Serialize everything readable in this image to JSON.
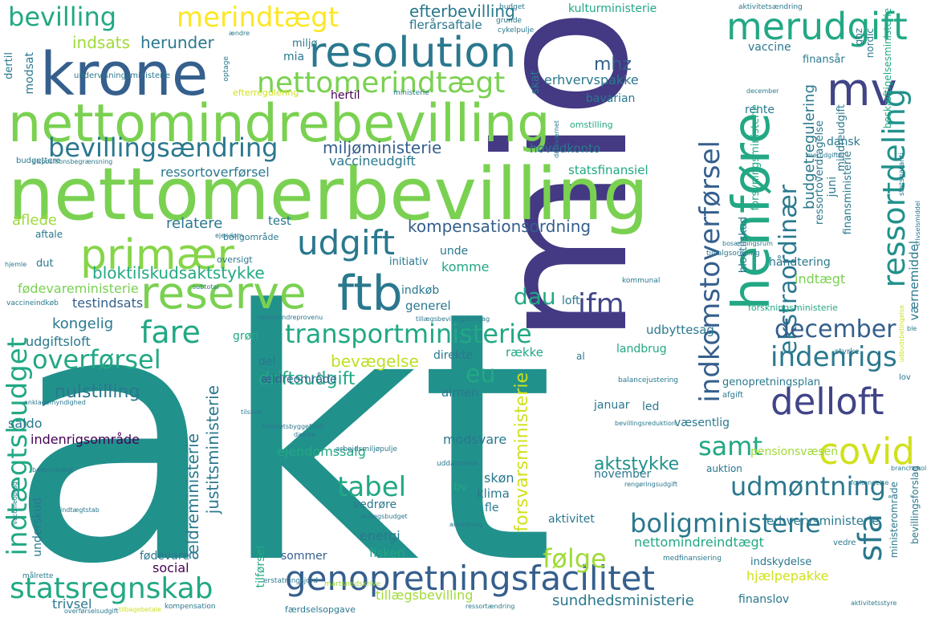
{
  "words": [
    {
      "text": "akt",
      "color": "#21918c"
    },
    {
      "text": "mio",
      "color": "#443983"
    },
    {
      "text": "nettomerbevilling",
      "color": "#7ad151"
    },
    {
      "text": "nettomindrebevilling",
      "color": "#7ad151"
    },
    {
      "text": "krone",
      "color": "#355f8d"
    },
    {
      "text": "resolution",
      "color": "#2a788e"
    },
    {
      "text": "henføre",
      "color": "#22a884"
    },
    {
      "text": "reserve",
      "color": "#7ad151"
    },
    {
      "text": "ftb",
      "color": "#2a788e"
    },
    {
      "text": "primær",
      "color": "#86d549"
    },
    {
      "text": "genopretningsfacilitet",
      "color": "#355f8d"
    },
    {
      "text": "merudgift",
      "color": "#22a884"
    },
    {
      "text": "nettomerindtægt",
      "color": "#7ad151"
    },
    {
      "text": "udgift",
      "color": "#2a788e"
    },
    {
      "text": "mv",
      "color": "#414487"
    },
    {
      "text": "bevillingsændring",
      "color": "#2a788e"
    },
    {
      "text": "delloft",
      "color": "#414487"
    },
    {
      "text": "covid",
      "color": "#d0e11c"
    },
    {
      "text": "ressortdeling",
      "color": "#21918c"
    },
    {
      "text": "transportministerie",
      "color": "#22a884"
    },
    {
      "text": "boligministerie",
      "color": "#2a788e"
    },
    {
      "text": "statsregnskab",
      "color": "#22a884"
    },
    {
      "text": "ekstraordinær",
      "color": "#2a788e"
    },
    {
      "text": "indkomstoverførsel",
      "color": "#355f8d"
    },
    {
      "text": "sfa",
      "color": "#2a788e"
    },
    {
      "text": "indtægtsbudget",
      "color": "#22a884"
    },
    {
      "text": "fare",
      "color": "#22a884"
    },
    {
      "text": "ifm",
      "color": "#414487"
    },
    {
      "text": "merindtægt",
      "color": "#fde725"
    },
    {
      "text": "bevilling",
      "color": "#22a884"
    },
    {
      "text": "indenrigs",
      "color": "#2a788e"
    },
    {
      "text": "december",
      "color": "#355f8d"
    },
    {
      "text": "overførsel",
      "color": "#22a884"
    },
    {
      "text": "udmøntning",
      "color": "#2a788e"
    },
    {
      "text": "samt",
      "color": "#22a884"
    },
    {
      "text": "tabel",
      "color": "#22a884"
    },
    {
      "text": "følge",
      "color": "#a0da39"
    },
    {
      "text": "eu",
      "color": "#22a884"
    },
    {
      "text": "dau",
      "color": "#22a884"
    },
    {
      "text": "bloktilskudsaktstykke",
      "color": "#22a884"
    },
    {
      "text": "kompensationsordning",
      "color": "#355f8d"
    },
    {
      "text": "miljøministerie",
      "color": "#355f8d"
    },
    {
      "text": "driftsudgift",
      "color": "#22a884"
    },
    {
      "text": "nulstilling",
      "color": "#2a788e"
    },
    {
      "text": "forsvarsministerie",
      "color": "#d0e11c"
    },
    {
      "text": "aktstykke",
      "color": "#21918c"
    },
    {
      "text": "bevægelse",
      "color": "#bddf26"
    },
    {
      "text": "efterbevilling",
      "color": "#2a788e"
    },
    {
      "text": "flerårsaftale",
      "color": "#2a788e"
    },
    {
      "text": "kulturministerie",
      "color": "#22a884"
    },
    {
      "text": "herunder",
      "color": "#2a788e"
    },
    {
      "text": "indsats",
      "color": "#a0da39"
    },
    {
      "text": "budgetregulering",
      "color": "#2a788e"
    },
    {
      "text": "ressortoverførsel",
      "color": "#2a788e"
    },
    {
      "text": "vaccineudgift",
      "color": "#2a788e"
    },
    {
      "text": "relatere",
      "color": "#2a788e"
    },
    {
      "text": "kongelig",
      "color": "#2a788e"
    },
    {
      "text": "udgiftsloft",
      "color": "#2a788e"
    },
    {
      "text": "testindsats",
      "color": "#355f8d"
    },
    {
      "text": "fødevareministerie",
      "color": "#7ad151"
    },
    {
      "text": "erhvervspakke",
      "color": "#2a788e"
    },
    {
      "text": "mhz",
      "color": "#355f8d"
    },
    {
      "text": "bavarian",
      "color": "#2a788e"
    },
    {
      "text": "hovedkonto",
      "color": "#2a788e"
    },
    {
      "text": "statsfinansiel",
      "color": "#22a884"
    },
    {
      "text": "indenrigsområde",
      "color": "#440154"
    },
    {
      "text": "justitsministerie",
      "color": "#2a788e"
    },
    {
      "text": "ældreministerie",
      "color": "#2a788e"
    },
    {
      "text": "sundhedsministerie",
      "color": "#2a788e"
    },
    {
      "text": "tillægsbevilling",
      "color": "#a0da39"
    },
    {
      "text": "hjælpepakke",
      "color": "#d0e11c"
    },
    {
      "text": "nettomindreindtægt",
      "color": "#22a884"
    },
    {
      "text": "indtægt",
      "color": "#7ad151"
    },
    {
      "text": "værnemiddel",
      "color": "#2a788e"
    },
    {
      "text": "erhvervsministerie",
      "color": "#2a788e"
    },
    {
      "text": "pensionsvæsen",
      "color": "#a0da39"
    },
    {
      "text": "genopretningsplan",
      "color": "#2a788e"
    },
    {
      "text": "ejendomssalg",
      "color": "#22a884"
    },
    {
      "text": "modsvare",
      "color": "#2a788e"
    },
    {
      "text": "november",
      "color": "#2a788e"
    },
    {
      "text": "energi",
      "color": "#2a788e"
    },
    {
      "text": "fiskeri",
      "color": "#22a884"
    },
    {
      "text": "social",
      "color": "#440154"
    },
    {
      "text": "trivsel",
      "color": "#2a788e"
    },
    {
      "text": "landbrug",
      "color": "#22a884"
    },
    {
      "text": "udbyttesag",
      "color": "#2a788e"
    },
    {
      "text": "række",
      "color": "#22a884"
    },
    {
      "text": "direkte",
      "color": "#2a788e"
    },
    {
      "text": "generel",
      "color": "#2a788e"
    },
    {
      "text": "loft",
      "color": "#2a788e"
    },
    {
      "text": "indkøb",
      "color": "#2a788e"
    },
    {
      "text": "komme",
      "color": "#22a884"
    },
    {
      "text": "unde",
      "color": "#2a788e"
    },
    {
      "text": "initiativ",
      "color": "#2a788e"
    },
    {
      "text": "aflede",
      "color": "#a0da39"
    },
    {
      "text": "test",
      "color": "#2a788e"
    },
    {
      "text": "saldo",
      "color": "#2a788e"
    },
    {
      "text": "ældreområde",
      "color": "#355f8d"
    },
    {
      "text": "almen",
      "color": "#2a788e"
    },
    {
      "text": "del",
      "color": "#2a788e"
    },
    {
      "text": "grøn",
      "color": "#22a884"
    },
    {
      "text": "skøn",
      "color": "#2a788e"
    },
    {
      "text": "klima",
      "color": "#2a788e"
    },
    {
      "text": "fle",
      "color": "#2a788e"
    },
    {
      "text": "vedrøre",
      "color": "#2a788e"
    },
    {
      "text": "bv",
      "color": "#22a884"
    },
    {
      "text": "aktivitet",
      "color": "#2a788e"
    },
    {
      "text": "sommer",
      "color": "#355f8d"
    },
    {
      "text": "fødevare",
      "color": "#2a788e"
    },
    {
      "text": "januar",
      "color": "#2a788e"
    },
    {
      "text": "led",
      "color": "#2a788e"
    },
    {
      "text": "væsentlig",
      "color": "#2a788e"
    },
    {
      "text": "auktion",
      "color": "#2a788e"
    },
    {
      "text": "finanslov",
      "color": "#2a788e"
    },
    {
      "text": "indskydelse",
      "color": "#2a788e"
    },
    {
      "text": "dut",
      "color": "#2a788e"
    },
    {
      "text": "underskud",
      "color": "#2a788e"
    },
    {
      "text": "rente",
      "color": "#2a788e"
    },
    {
      "text": "dansk",
      "color": "#2a788e"
    },
    {
      "text": "vaccine",
      "color": "#2a788e"
    },
    {
      "text": "finansår",
      "color": "#2a788e"
    },
    {
      "text": "skat",
      "color": "#2a788e"
    },
    {
      "text": "hertil",
      "color": "#440154"
    },
    {
      "text": "mia",
      "color": "#2a788e"
    },
    {
      "text": "miljø",
      "color": "#2a788e"
    },
    {
      "text": "juni",
      "color": "#2a788e"
    },
    {
      "text": "håndtering",
      "color": "#2a788e"
    },
    {
      "text": "bloktilskud",
      "color": "#2a788e"
    },
    {
      "text": "finansministerie",
      "color": "#2a788e"
    },
    {
      "text": "mindreudgift",
      "color": "#2a788e"
    },
    {
      "text": "ressortoverdragelse",
      "color": "#2a788e"
    },
    {
      "text": "forsyningsministerie",
      "color": "#22a884"
    },
    {
      "text": "forskningsministerie",
      "color": "#22a884"
    },
    {
      "text": "beskæftigelsesministerie",
      "color": "#22a884"
    },
    {
      "text": "bevillingsforslag",
      "color": "#2a788e"
    },
    {
      "text": "ministerområde",
      "color": "#2a788e"
    },
    {
      "text": "modsat",
      "color": "#2a788e"
    },
    {
      "text": "dertil",
      "color": "#2a788e"
    },
    {
      "text": "udbudsbetingelse",
      "color": "#d0e11c"
    },
    {
      "text": "nordic",
      "color": "#2a788e"
    },
    {
      "text": "ghz",
      "color": "#2a788e"
    },
    {
      "text": "boligområde",
      "color": "#2a788e"
    },
    {
      "text": "aftale",
      "color": "#2a788e"
    },
    {
      "text": "oversigt",
      "color": "#2a788e"
    },
    {
      "text": "tilbagebetale",
      "color": "#d0e11c"
    },
    {
      "text": "tilførsel",
      "color": "#22a884"
    },
    {
      "text": "styrke",
      "color": "#2a788e"
    },
    {
      "text": "lov",
      "color": "#2a788e"
    },
    {
      "text": "afgift",
      "color": "#2a788e"
    },
    {
      "text": "vedre",
      "color": "#2a788e"
    },
    {
      "text": "al",
      "color": "#2a788e"
    },
    {
      "text": "efterregulering",
      "color": "#d0e11c"
    },
    {
      "text": "undervisningsministerie",
      "color": "#2a788e"
    },
    {
      "text": "budgettere",
      "color": "#2a788e"
    },
    {
      "text": "omstilling",
      "color": "#22a884"
    },
    {
      "text": "cykelpulje",
      "color": "#2a788e"
    },
    {
      "text": "grunde",
      "color": "#2a788e"
    },
    {
      "text": "ændre",
      "color": "#2a788e"
    },
    {
      "text": "budget",
      "color": "#2a788e"
    },
    {
      "text": "aktivitetsændring",
      "color": "#2a788e"
    },
    {
      "text": "optage",
      "color": "#2a788e"
    },
    {
      "text": "ministerie",
      "color": "#2a788e"
    },
    {
      "text": "vaccineindkøb",
      "color": "#2a788e"
    },
    {
      "text": "subtotal",
      "color": "#2a788e"
    },
    {
      "text": "kompensation",
      "color": "#2a788e"
    },
    {
      "text": "målrette",
      "color": "#2a788e"
    },
    {
      "text": "statsgaranti",
      "color": "#2a788e"
    },
    {
      "text": "arbejdsmiljøpulje",
      "color": "#2a788e"
    },
    {
      "text": "uddannelse",
      "color": "#2a788e"
    },
    {
      "text": "kommunal",
      "color": "#2a788e"
    },
    {
      "text": "balancejustering",
      "color": "#2a788e"
    },
    {
      "text": "bevillingsreduktion",
      "color": "#2a788e"
    },
    {
      "text": "færdselsopgave",
      "color": "#2a788e"
    },
    {
      "text": "tilvalgsordning",
      "color": "#2a788e"
    },
    {
      "text": "kvalitetsbyggefond",
      "color": "#2a788e"
    },
    {
      "text": "martsnedskrive",
      "color": "#a0da39"
    },
    {
      "text": "erstatningsjord",
      "color": "#2a788e"
    },
    {
      "text": "medfinansiering",
      "color": "#2a788e"
    },
    {
      "text": "rengøringsudgift",
      "color": "#2a788e"
    },
    {
      "text": "bødeindtægt",
      "color": "#2a788e"
    },
    {
      "text": "indtægtstab",
      "color": "#2a788e"
    },
    {
      "text": "nettomindreprovenu",
      "color": "#2a788e"
    },
    {
      "text": "dække",
      "color": "#2a788e"
    },
    {
      "text": "hjemle",
      "color": "#2a788e"
    },
    {
      "text": "ejendom",
      "color": "#2a788e"
    },
    {
      "text": "december",
      "color": "#2a788e"
    },
    {
      "text": "ansøgning",
      "color": "#2a788e"
    },
    {
      "text": "ble",
      "color": "#2a788e"
    },
    {
      "text": "trivselsmiddel",
      "color": "#2a788e"
    },
    {
      "text": "dataværnet",
      "color": "#2a788e"
    },
    {
      "text": "anklagemyndighed",
      "color": "#2a788e"
    },
    {
      "text": "aktivitetsstyre",
      "color": "#2a788e"
    },
    {
      "text": "tillægsbevillingsforslag",
      "color": "#2a788e"
    },
    {
      "text": "overførselsudgift",
      "color": "#2a788e"
    },
    {
      "text": "vaccineoptag",
      "color": "#2a788e"
    },
    {
      "text": "branchekoll",
      "color": "#2a788e"
    },
    {
      "text": "bosætningsrum",
      "color": "#2a788e"
    },
    {
      "text": "forlængelse",
      "color": "#2a788e"
    },
    {
      "text": "anlægsbudget",
      "color": "#2a788e"
    },
    {
      "text": "dispositionsbegrænsning",
      "color": "#2a788e"
    },
    {
      "text": "tilskud",
      "color": "#2a788e"
    },
    {
      "text": "ressortændring",
      "color": "#2a788e"
    },
    {
      "text": "merudgifter",
      "color": "#2a788e"
    }
  ]
}
